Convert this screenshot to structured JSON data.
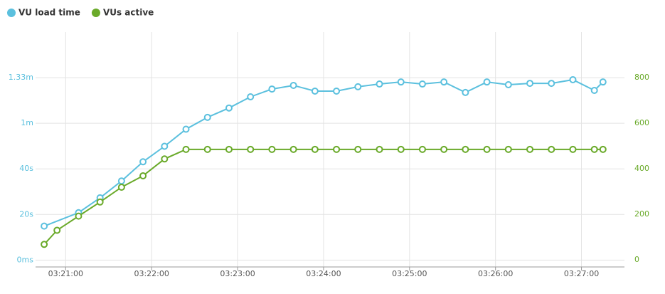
{
  "chart_data": {
    "type": "line",
    "xticks": [
      "03:21:00",
      "03:22:00",
      "03:23:00",
      "03:24:00",
      "03:25:00",
      "03:26:00",
      "03:27:00"
    ],
    "xlim": [
      "03:20:39",
      "03:27:30"
    ],
    "ylim": [
      -3,
      100
    ],
    "yticks": [
      {
        "value": 0,
        "label": "0ms"
      },
      {
        "value": 20,
        "label": "20s"
      },
      {
        "value": 40,
        "label": "40s"
      },
      {
        "value": 60,
        "label": "1m"
      },
      {
        "value": 80,
        "label": "1.33m"
      }
    ],
    "y2lim": [
      -31,
      1000
    ],
    "y2ticks": [
      0,
      200,
      400,
      600,
      800
    ],
    "grid": true,
    "legend": "top-left",
    "series": [
      {
        "name": "VU load time",
        "color": "#5bc0de",
        "x": [
          "03:20:45",
          "03:21:09",
          "03:21:24",
          "03:21:39",
          "03:21:54",
          "03:22:09",
          "03:22:24",
          "03:22:39",
          "03:22:54",
          "03:23:09",
          "03:23:24",
          "03:23:39",
          "03:23:54",
          "03:24:09",
          "03:24:24",
          "03:24:39",
          "03:24:54",
          "03:25:09",
          "03:25:24",
          "03:25:39",
          "03:25:54",
          "03:26:09",
          "03:26:24",
          "03:26:39",
          "03:26:54",
          "03:27:09",
          "03:27:15"
        ],
        "values": [
          14.9,
          20.8,
          27.3,
          34.7,
          43.1,
          49.9,
          57.4,
          62.6,
          66.7,
          71.6,
          75.0,
          76.6,
          74.1,
          74.1,
          76.0,
          77.2,
          78.1,
          77.2,
          78.1,
          73.5,
          78.1,
          76.9,
          77.5,
          77.5,
          79.1,
          74.4,
          78.1
        ]
      },
      {
        "name": "VUs active",
        "color": "#6aaa2a",
        "axis": "y2",
        "x": [
          "03:20:45",
          "03:20:54",
          "03:21:09",
          "03:21:24",
          "03:21:39",
          "03:21:54",
          "03:22:09",
          "03:22:24",
          "03:22:39",
          "03:22:54",
          "03:23:09",
          "03:23:24",
          "03:23:39",
          "03:23:54",
          "03:24:09",
          "03:24:24",
          "03:24:39",
          "03:24:54",
          "03:25:09",
          "03:25:24",
          "03:25:39",
          "03:25:54",
          "03:26:09",
          "03:26:24",
          "03:26:39",
          "03:26:54",
          "03:27:09",
          "03:27:15"
        ],
        "values": [
          68,
          130,
          192,
          254,
          319,
          369,
          443,
          485,
          485,
          485,
          485,
          485,
          485,
          485,
          485,
          485,
          485,
          485,
          485,
          485,
          485,
          485,
          485,
          485,
          485,
          485,
          485,
          485
        ]
      }
    ]
  }
}
